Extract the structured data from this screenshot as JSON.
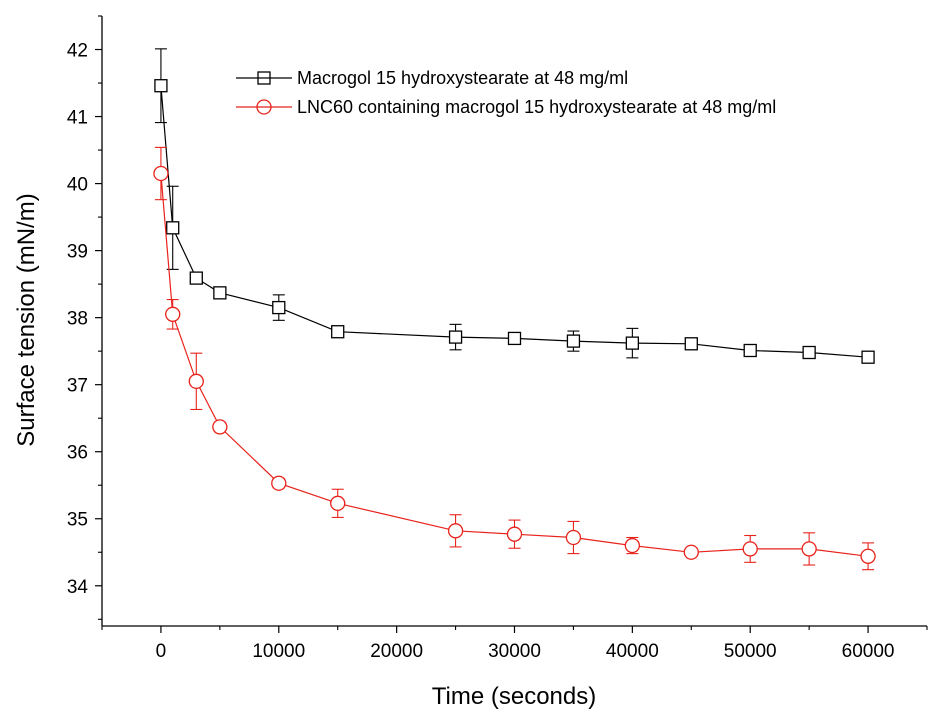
{
  "chart_data": {
    "type": "line",
    "title": "",
    "xlabel": "Time (seconds)",
    "ylabel": "Surface tension (mN/m)",
    "xlim": [
      -5000,
      65000
    ],
    "ylim": [
      33.4,
      42.5
    ],
    "x_ticks": [
      "0",
      "10000",
      "20000",
      "30000",
      "40000",
      "50000",
      "60000"
    ],
    "y_ticks": [
      "34",
      "35",
      "36",
      "37",
      "38",
      "39",
      "40",
      "41",
      "42"
    ],
    "grid": false,
    "legend_position": "top-right",
    "x": [
      0,
      1000,
      3000,
      5000,
      10000,
      15000,
      25000,
      30000,
      35000,
      40000,
      45000,
      50000,
      55000,
      60000
    ],
    "series": [
      {
        "name": "Macrogol 15 hydroxystearate at 48 mg/ml",
        "color": "#000000",
        "marker": "square",
        "values": [
          41.46,
          39.34,
          38.59,
          38.37,
          38.15,
          37.79,
          37.71,
          37.69,
          37.65,
          37.62,
          37.61,
          37.51,
          37.48,
          37.41
        ],
        "errors": [
          0.55,
          0.62,
          0.05,
          0.07,
          0.19,
          0.08,
          0.19,
          0.08,
          0.15,
          0.22,
          0.05,
          0.05,
          0.05,
          0.07
        ]
      },
      {
        "name": "LNC60 containing macrogol 15 hydroxystearate at 48 mg/ml",
        "color": "#e8231b",
        "marker": "circle",
        "values": [
          40.15,
          38.05,
          37.05,
          36.37,
          35.53,
          35.23,
          34.82,
          34.77,
          34.72,
          34.6,
          34.5,
          34.55,
          34.55,
          34.44
        ],
        "errors": [
          0.39,
          0.22,
          0.42,
          0.07,
          0.07,
          0.21,
          0.24,
          0.21,
          0.24,
          0.12,
          0.05,
          0.2,
          0.24,
          0.2
        ]
      }
    ]
  }
}
